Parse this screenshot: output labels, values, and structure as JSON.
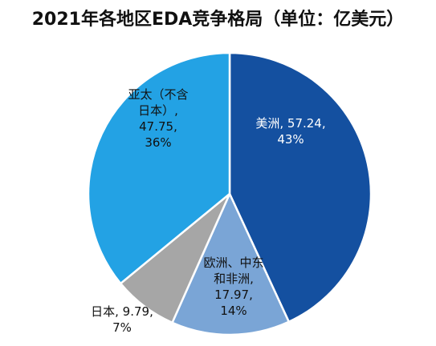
{
  "title": "2021年各地区EDA竞争格局（单位：亿美元）",
  "chart_data": {
    "type": "pie",
    "title": "2021年各地区EDA竞争格局（单位：亿美元）",
    "start_angle_deg": 0,
    "direction": "clockwise",
    "slices": [
      {
        "name": "美洲",
        "value": 57.24,
        "percent": "43%",
        "color": "#1450A0",
        "label_color": "#ffffff",
        "label_lines": [
          "美洲, 57.24,",
          "43%"
        ]
      },
      {
        "name": "欧洲、中东和非洲",
        "value": 17.97,
        "percent": "14%",
        "color": "#7AA5D6",
        "label_color": "#111111",
        "label_lines": [
          "欧洲、中东",
          "和非洲,",
          "17.97,",
          "14%"
        ]
      },
      {
        "name": "日本",
        "value": 9.79,
        "percent": "7%",
        "color": "#A6A6A6",
        "label_color": "#111111",
        "label_lines": [
          "日本, 9.79,",
          "7%"
        ]
      },
      {
        "name": "亚太（不含日本）",
        "value": 47.75,
        "percent": "36%",
        "color": "#23A2E4",
        "label_color": "#111111",
        "label_lines": [
          "亚太（不含",
          "日本）,",
          "47.75,",
          "36%"
        ]
      }
    ]
  }
}
